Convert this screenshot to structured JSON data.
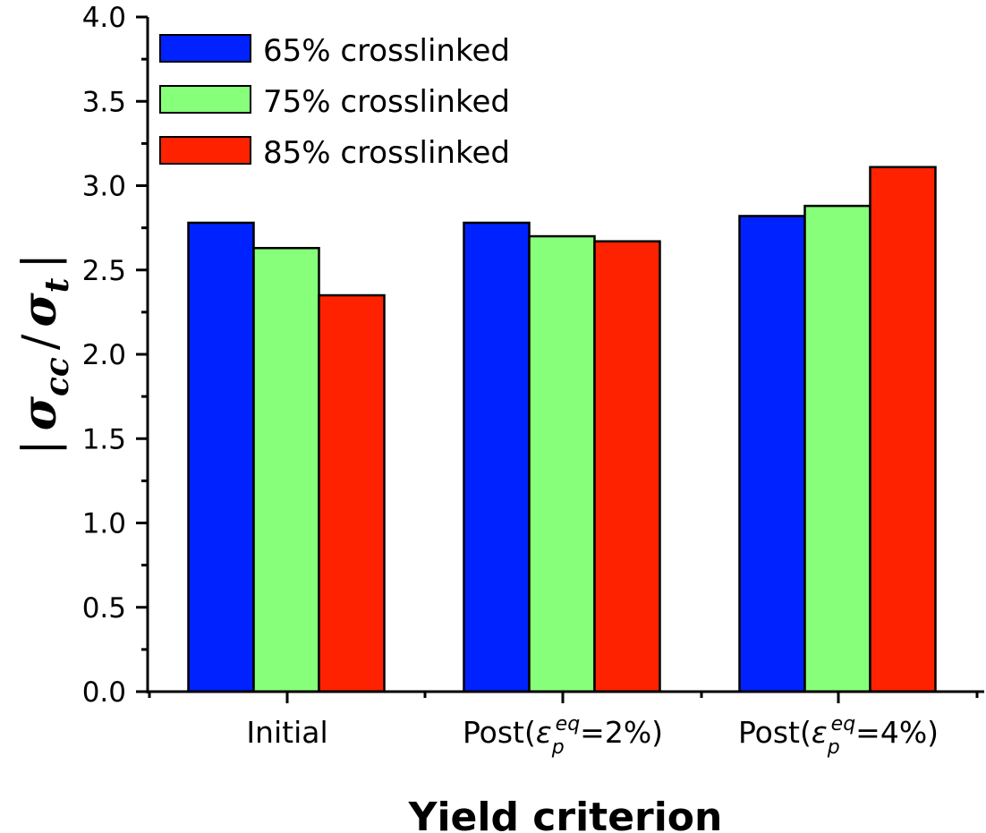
{
  "chart_data": {
    "type": "bar",
    "title": "",
    "xlabel": "Yield criterion",
    "ylabel": {
      "bar_left": "|",
      "sigma": "σ",
      "sub_cc": "cc",
      "slash": "/",
      "sub_t": "t",
      "bar_right": "|",
      "full_text": "|σcc / σt|"
    },
    "ylim": [
      0.0,
      4.0
    ],
    "yticks": [
      "0.0",
      "0.5",
      "1.0",
      "1.5",
      "2.0",
      "2.5",
      "3.0",
      "3.5",
      "4.0"
    ],
    "ytick_values": [
      0.0,
      0.5,
      1.0,
      1.5,
      2.0,
      2.5,
      3.0,
      3.5,
      4.0
    ],
    "y_minor_step": 0.25,
    "grid": false,
    "legend_position": "top-left",
    "categories": [
      {
        "main": "Initial",
        "eps": "",
        "sup": "",
        "sub": "",
        "tail": ""
      },
      {
        "main": "Post(",
        "eps": "ε",
        "sup": "eq",
        "sub": "p",
        "tail": "=2%)"
      },
      {
        "main": "Post(",
        "eps": "ε",
        "sup": "eq",
        "sub": "p",
        "tail": "=4%)"
      }
    ],
    "category_labels": [
      "Initial",
      "Post(ε_p^eq=2%)",
      "Post(ε_p^eq=4%)"
    ],
    "series": [
      {
        "name": "65% crosslinked",
        "color": "#0022ff",
        "values": [
          2.78,
          2.78,
          2.82
        ]
      },
      {
        "name": "75% crosslinked",
        "color": "#88ff7a",
        "values": [
          2.63,
          2.7,
          2.88
        ]
      },
      {
        "name": "85% crosslinked",
        "color": "#ff2200",
        "values": [
          2.35,
          2.67,
          3.11
        ]
      }
    ]
  }
}
